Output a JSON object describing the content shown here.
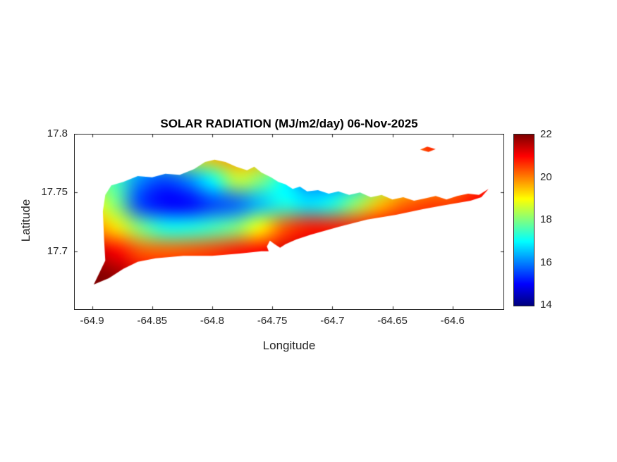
{
  "figure": {
    "background": "#ffffff",
    "axis_color": "#262626"
  },
  "chart_data": {
    "type": "heatmap",
    "title": "SOLAR RADIATION (MJ/m2/day) 06-Nov-2025",
    "xlabel": "Longitude",
    "ylabel": "Latitude",
    "xlim": [
      -64.915,
      -64.557
    ],
    "ylim": [
      17.65,
      17.8
    ],
    "grid_on": false,
    "xticks": {
      "values": [
        -64.9,
        -64.85,
        -64.8,
        -64.75,
        -64.7,
        -64.65,
        -64.6
      ],
      "labels": [
        "-64.9",
        "-64.85",
        "-64.8",
        "-64.75",
        "-64.7",
        "-64.65",
        "-64.6"
      ]
    },
    "yticks": {
      "values": [
        17.7,
        17.75,
        17.8
      ],
      "labels": [
        "17.7",
        "17.75",
        "17.8"
      ]
    },
    "colorbar": {
      "min": 14,
      "max": 22,
      "tick_values": [
        14,
        16,
        18,
        20,
        22
      ],
      "tick_labels": [
        "14",
        "16",
        "18",
        "20",
        "22"
      ],
      "colormap": "jet",
      "position": "right"
    },
    "grid": {
      "lons": [
        -64.92,
        -64.9,
        -64.88,
        -64.86,
        -64.84,
        -64.82,
        -64.8,
        -64.78,
        -64.76,
        -64.74,
        -64.72,
        -64.7,
        -64.68,
        -64.66,
        -64.64,
        -64.62,
        -64.6,
        -64.58,
        -64.56,
        -64.54
      ],
      "lats": [
        17.8,
        17.78,
        17.76,
        17.74,
        17.72,
        17.7,
        17.68,
        17.66
      ],
      "values": [
        [
          18.5,
          18.5,
          18.0,
          17.5,
          18.0,
          19.0,
          19.8,
          19.5,
          19.0,
          18.0,
          16.5,
          16.5,
          17.0,
          18.0,
          19.5,
          21.0,
          20.5,
          20.5,
          21.0,
          21.0
        ],
        [
          17.5,
          17.5,
          17.2,
          17.0,
          17.5,
          18.5,
          19.5,
          19.8,
          19.5,
          18.5,
          16.5,
          16.0,
          16.5,
          17.8,
          19.0,
          20.5,
          20.0,
          20.5,
          21.0,
          21.0
        ],
        [
          18.0,
          18.0,
          17.5,
          16.0,
          15.5,
          16.0,
          17.0,
          18.5,
          18.0,
          17.0,
          16.0,
          16.0,
          16.5,
          18.0,
          19.0,
          19.5,
          20.0,
          20.5,
          21.0,
          21.0
        ],
        [
          19.0,
          19.0,
          18.0,
          15.5,
          15.0,
          15.0,
          15.5,
          15.8,
          16.5,
          17.2,
          16.8,
          17.2,
          18.2,
          19.5,
          20.2,
          20.5,
          20.5,
          21.0,
          21.0,
          21.0
        ],
        [
          20.0,
          20.0,
          19.2,
          18.0,
          17.2,
          17.2,
          17.5,
          18.0,
          19.0,
          20.3,
          20.8,
          20.8,
          20.8,
          21.0,
          21.0,
          20.8,
          21.0,
          21.0,
          21.0,
          21.0
        ],
        [
          21.5,
          21.5,
          21.0,
          20.3,
          20.2,
          20.3,
          20.5,
          20.8,
          21.0,
          21.3,
          21.5,
          21.5,
          21.5,
          21.5,
          21.5,
          21.5,
          21.5,
          21.5,
          21.5,
          21.5
        ],
        [
          22.0,
          22.0,
          21.8,
          21.2,
          21.0,
          21.0,
          21.0,
          21.0,
          21.0,
          21.2,
          21.2,
          21.2,
          21.2,
          21.2,
          21.2,
          21.2,
          21.2,
          21.2,
          21.2,
          21.2
        ],
        [
          22.0,
          22.0,
          22.0,
          21.5,
          21.2,
          21.2,
          21.2,
          21.2,
          21.2,
          21.2,
          21.2,
          21.2,
          21.2,
          21.2,
          21.2,
          21.2,
          21.2,
          21.2,
          21.2,
          21.2
        ]
      ]
    },
    "regions": [
      [
        [
          -64.8986,
          17.6716
        ],
        [
          -64.889,
          17.692
        ],
        [
          -64.89,
          17.71
        ],
        [
          -64.891,
          17.734
        ],
        [
          -64.889,
          17.748
        ],
        [
          -64.884,
          17.756
        ],
        [
          -64.874,
          17.759
        ],
        [
          -64.862,
          17.764
        ],
        [
          -64.85,
          17.763
        ],
        [
          -64.839,
          17.766
        ],
        [
          -64.827,
          17.765
        ],
        [
          -64.815,
          17.77
        ],
        [
          -64.806,
          17.776
        ],
        [
          -64.798,
          17.778
        ],
        [
          -64.789,
          17.776
        ],
        [
          -64.78,
          17.772
        ],
        [
          -64.771,
          17.769
        ],
        [
          -64.765,
          17.772
        ],
        [
          -64.759,
          17.767
        ],
        [
          -64.751,
          17.763
        ],
        [
          -64.745,
          17.759
        ],
        [
          -64.739,
          17.757
        ],
        [
          -64.733,
          17.753
        ],
        [
          -64.727,
          17.755
        ],
        [
          -64.721,
          17.751
        ],
        [
          -64.712,
          17.752
        ],
        [
          -64.703,
          17.749
        ],
        [
          -64.695,
          17.751
        ],
        [
          -64.686,
          17.748
        ],
        [
          -64.677,
          17.75
        ],
        [
          -64.668,
          17.746
        ],
        [
          -64.659,
          17.748
        ],
        [
          -64.65,
          17.744
        ],
        [
          -64.641,
          17.746
        ],
        [
          -64.632,
          17.743
        ],
        [
          -64.623,
          17.745
        ],
        [
          -64.614,
          17.747
        ],
        [
          -64.605,
          17.744
        ],
        [
          -64.596,
          17.747
        ],
        [
          -64.587,
          17.749
        ],
        [
          -64.578,
          17.748
        ],
        [
          -64.57,
          17.753
        ],
        [
          -64.576,
          17.746
        ],
        [
          -64.585,
          17.743
        ],
        [
          -64.596,
          17.741
        ],
        [
          -64.608,
          17.739
        ],
        [
          -64.624,
          17.736
        ],
        [
          -64.647,
          17.731
        ],
        [
          -64.671,
          17.727
        ],
        [
          -64.694,
          17.721
        ],
        [
          -64.718,
          17.714
        ],
        [
          -64.73,
          17.71
        ],
        [
          -64.739,
          17.706
        ],
        [
          -64.7435,
          17.703
        ],
        [
          -64.748,
          17.706
        ],
        [
          -64.752,
          17.709
        ],
        [
          -64.7545,
          17.704
        ],
        [
          -64.753,
          17.7
        ],
        [
          -64.759,
          17.7
        ],
        [
          -64.777,
          17.698
        ],
        [
          -64.8,
          17.696
        ],
        [
          -64.824,
          17.696
        ],
        [
          -64.847,
          17.694
        ],
        [
          -64.862,
          17.691
        ],
        [
          -64.874,
          17.685
        ],
        [
          -64.886,
          17.677
        ]
      ],
      [
        [
          -64.627,
          17.7865
        ],
        [
          -64.621,
          17.789
        ],
        [
          -64.614,
          17.787
        ],
        [
          -64.62,
          17.7845
        ]
      ]
    ]
  }
}
